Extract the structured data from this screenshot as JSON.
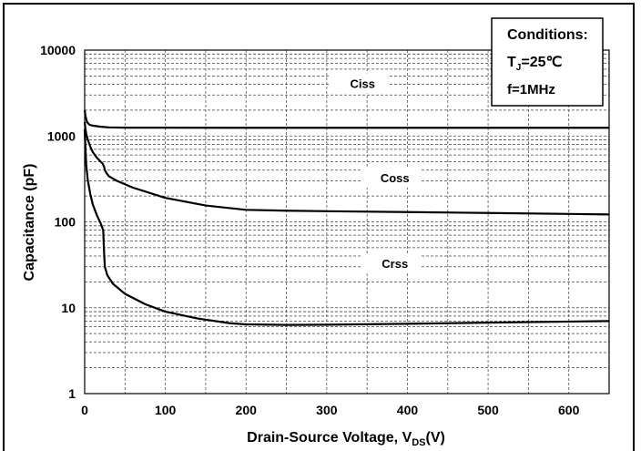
{
  "chart_data": {
    "type": "line",
    "xlabel": "Drain-Source Voltage, V",
    "xlabel_sub": "DS",
    "xlabel_unit": "(V)",
    "ylabel": "Capacitance  (pF)",
    "xlim": [
      0,
      650
    ],
    "ylim": [
      1,
      10000
    ],
    "yscale": "log",
    "x_ticks": [
      "0",
      "100",
      "200",
      "300",
      "400",
      "500",
      "600"
    ],
    "y_ticks": [
      "1",
      "10",
      "100",
      "1000",
      "10000"
    ],
    "grid": true,
    "legend": {
      "title": "Conditions:",
      "line1": "T",
      "line1_sub": "J",
      "line1_rest": "=25℃",
      "line2": "f=1MHz",
      "position": "top-right"
    },
    "series": [
      {
        "name": "Ciss",
        "label_at": [
          340,
          4000
        ],
        "points": [
          [
            0,
            2000
          ],
          [
            1,
            1700
          ],
          [
            3,
            1450
          ],
          [
            6,
            1350
          ],
          [
            10,
            1320
          ],
          [
            20,
            1280
          ],
          [
            30,
            1260
          ],
          [
            50,
            1250
          ],
          [
            100,
            1250
          ],
          [
            200,
            1245
          ],
          [
            300,
            1245
          ],
          [
            400,
            1245
          ],
          [
            500,
            1245
          ],
          [
            650,
            1245
          ]
        ]
      },
      {
        "name": "Coss",
        "label_at": [
          380,
          320
        ],
        "points": [
          [
            0,
            1450
          ],
          [
            1,
            1200
          ],
          [
            2,
            1050
          ],
          [
            4,
            900
          ],
          [
            7,
            750
          ],
          [
            10,
            650
          ],
          [
            15,
            560
          ],
          [
            20,
            500
          ],
          [
            22,
            480
          ],
          [
            24,
            440
          ],
          [
            25,
            400
          ],
          [
            27,
            370
          ],
          [
            30,
            340
          ],
          [
            40,
            300
          ],
          [
            60,
            250
          ],
          [
            100,
            190
          ],
          [
            150,
            155
          ],
          [
            200,
            138
          ],
          [
            250,
            135
          ],
          [
            300,
            133
          ],
          [
            400,
            130
          ],
          [
            500,
            127
          ],
          [
            650,
            122
          ]
        ]
      },
      {
        "name": "Crss",
        "label_at": [
          380,
          32
        ],
        "points": [
          [
            0,
            1200
          ],
          [
            1,
            700
          ],
          [
            2,
            450
          ],
          [
            4,
            300
          ],
          [
            7,
            210
          ],
          [
            10,
            160
          ],
          [
            15,
            120
          ],
          [
            20,
            95
          ],
          [
            23,
            80
          ],
          [
            24,
            45
          ],
          [
            25,
            30
          ],
          [
            28,
            24
          ],
          [
            35,
            19
          ],
          [
            50,
            14.5
          ],
          [
            75,
            11
          ],
          [
            100,
            9
          ],
          [
            140,
            7.5
          ],
          [
            180,
            6.6
          ],
          [
            200,
            6.4
          ],
          [
            250,
            6.3
          ],
          [
            300,
            6.35
          ],
          [
            400,
            6.5
          ],
          [
            500,
            6.7
          ],
          [
            650,
            7.0
          ]
        ]
      }
    ]
  }
}
